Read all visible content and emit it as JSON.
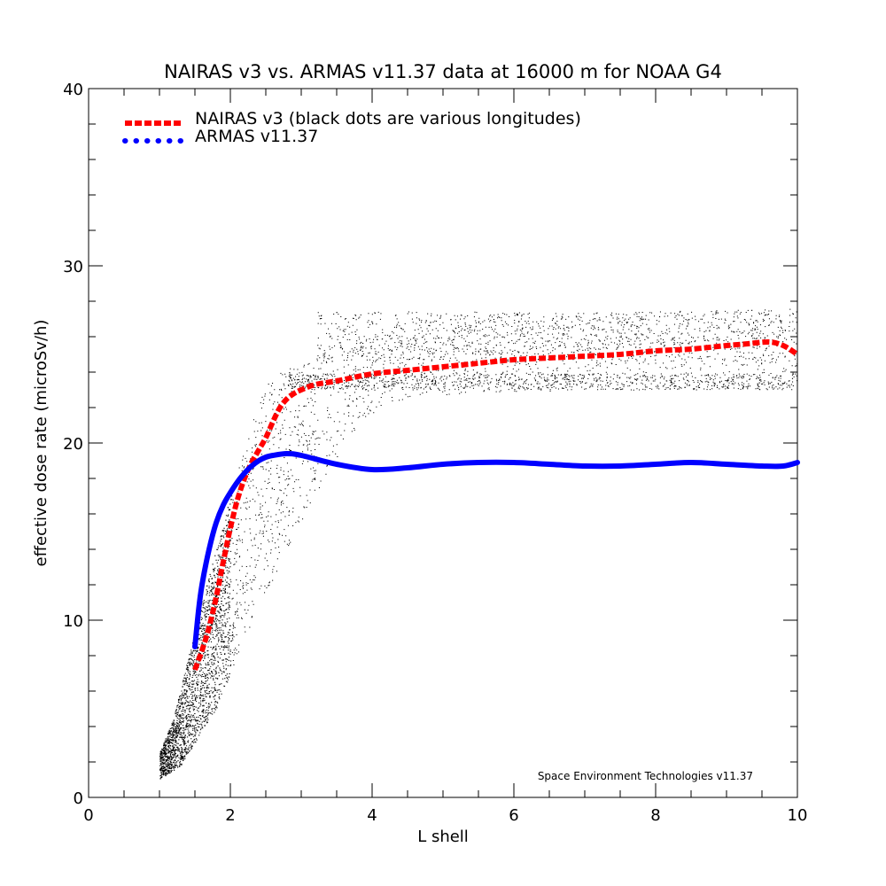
{
  "chart_data": {
    "type": "line",
    "title": "NAIRAS  v3 vs. ARMAS v11.37 data at 16000 m for NOAA G4",
    "xlabel": "L shell",
    "ylabel": "effective dose rate (microSv/h)",
    "xlim": [
      0,
      10
    ],
    "ylim": [
      0,
      40
    ],
    "x_ticks": [
      0,
      2,
      4,
      6,
      8,
      10
    ],
    "y_ticks": [
      0,
      10,
      20,
      30,
      40
    ],
    "grid": false,
    "legend_position": "top-left",
    "credit": "Space Environment Technologies v11.37",
    "series": [
      {
        "name": "NAIRAS v3 (black dots are various longitudes)",
        "color": "#ff0000",
        "style": "dashed",
        "points": [
          [
            1.5,
            7.2
          ],
          [
            1.6,
            8.3
          ],
          [
            1.7,
            9.6
          ],
          [
            1.8,
            11.3
          ],
          [
            1.9,
            13.3
          ],
          [
            2.0,
            15.2
          ],
          [
            2.1,
            16.8
          ],
          [
            2.2,
            18.0
          ],
          [
            2.3,
            18.9
          ],
          [
            2.4,
            19.6
          ],
          [
            2.5,
            20.3
          ],
          [
            2.6,
            21.2
          ],
          [
            2.7,
            22.0
          ],
          [
            2.8,
            22.5
          ],
          [
            2.9,
            22.8
          ],
          [
            3.0,
            23.0
          ],
          [
            3.2,
            23.3
          ],
          [
            3.5,
            23.5
          ],
          [
            4.0,
            23.9
          ],
          [
            4.5,
            24.1
          ],
          [
            5.0,
            24.3
          ],
          [
            5.5,
            24.5
          ],
          [
            6.0,
            24.7
          ],
          [
            6.5,
            24.8
          ],
          [
            7.0,
            24.9
          ],
          [
            7.5,
            25.0
          ],
          [
            8.0,
            25.2
          ],
          [
            8.5,
            25.3
          ],
          [
            9.0,
            25.5
          ],
          [
            9.3,
            25.6
          ],
          [
            9.6,
            25.7
          ],
          [
            9.8,
            25.5
          ],
          [
            10.0,
            25.0
          ]
        ]
      },
      {
        "name": "ARMAS v11.37",
        "color": "#0000ff",
        "style": "dotted",
        "points": [
          [
            1.5,
            8.5
          ],
          [
            1.55,
            10.5
          ],
          [
            1.6,
            12.0
          ],
          [
            1.7,
            14.0
          ],
          [
            1.8,
            15.5
          ],
          [
            1.9,
            16.5
          ],
          [
            2.0,
            17.2
          ],
          [
            2.1,
            17.8
          ],
          [
            2.2,
            18.3
          ],
          [
            2.3,
            18.7
          ],
          [
            2.4,
            19.0
          ],
          [
            2.5,
            19.2
          ],
          [
            2.6,
            19.3
          ],
          [
            2.8,
            19.4
          ],
          [
            3.0,
            19.3
          ],
          [
            3.5,
            18.8
          ],
          [
            4.0,
            18.5
          ],
          [
            4.5,
            18.6
          ],
          [
            5.0,
            18.8
          ],
          [
            5.5,
            18.9
          ],
          [
            6.0,
            18.9
          ],
          [
            6.5,
            18.8
          ],
          [
            7.0,
            18.7
          ],
          [
            7.5,
            18.7
          ],
          [
            8.0,
            18.8
          ],
          [
            8.5,
            18.9
          ],
          [
            9.0,
            18.8
          ],
          [
            9.5,
            18.7
          ],
          [
            9.8,
            18.7
          ],
          [
            10.0,
            18.9
          ]
        ]
      }
    ]
  }
}
